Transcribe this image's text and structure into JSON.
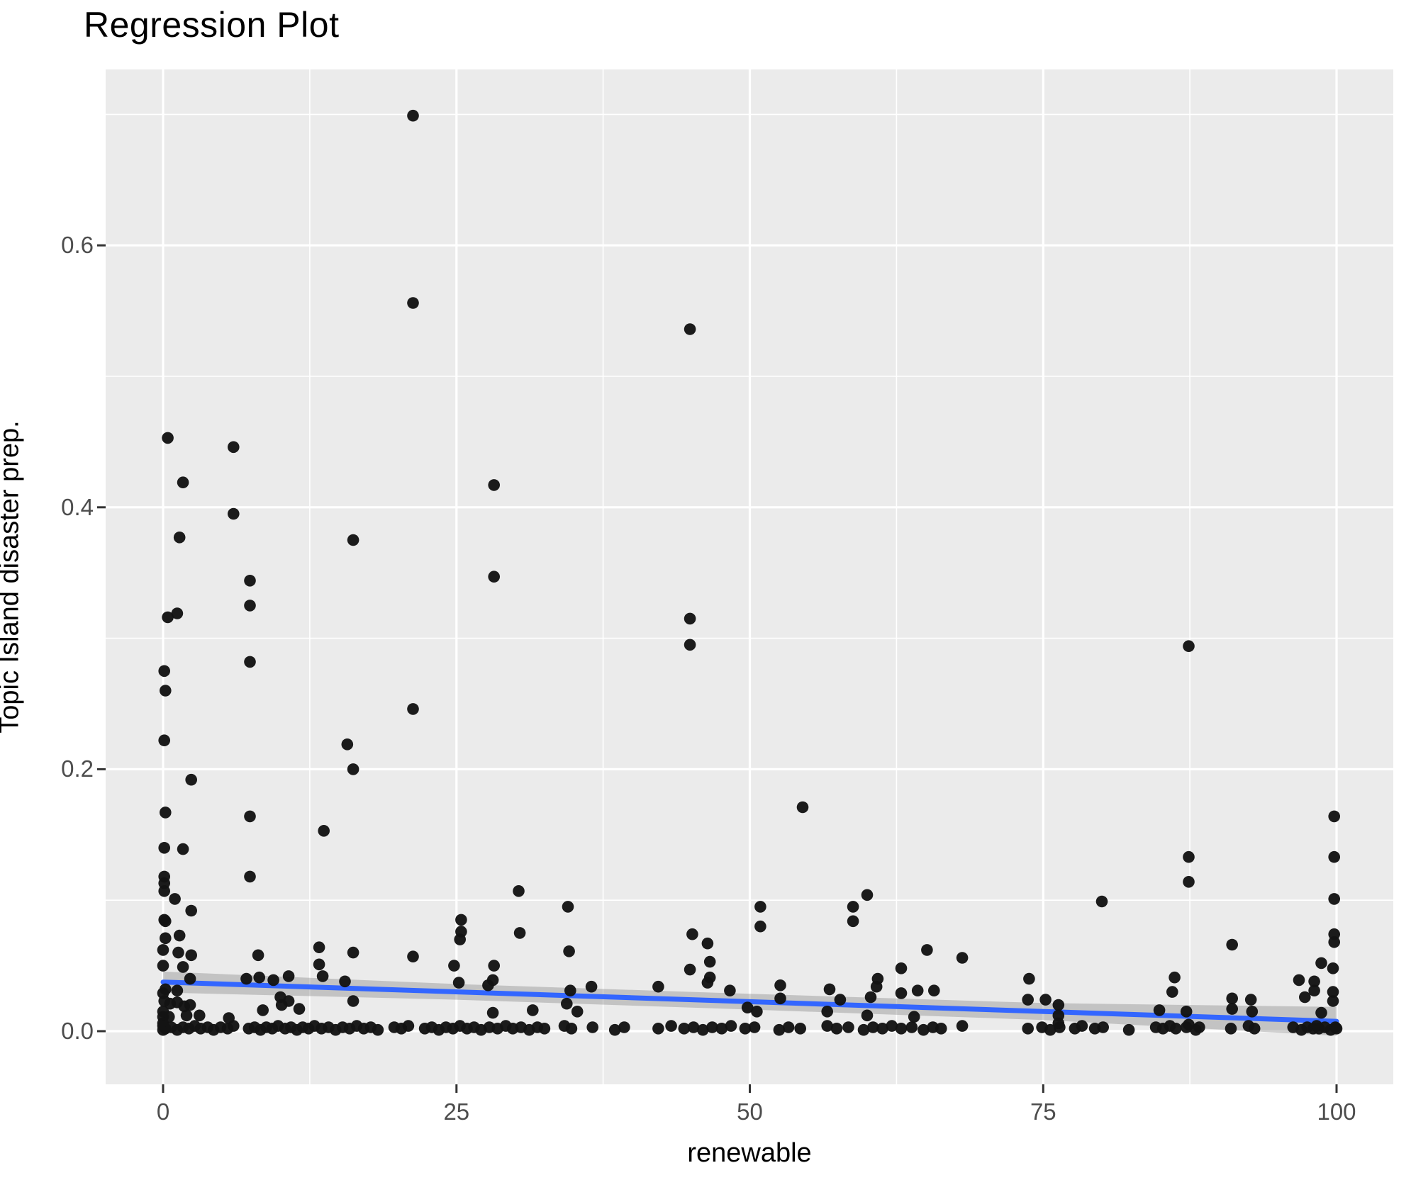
{
  "title": "Regression Plot",
  "colors": {
    "panel_background": "#EBEBEB",
    "grid": "#FFFFFF",
    "point": "#141414",
    "regression_line": "#3366FF",
    "confidence_band": "rgba(120,120,120,0.35)",
    "tick_label": "#4D4D4D",
    "tick_mark": "#333333",
    "text": "#000000"
  },
  "chart_data": {
    "type": "scatter",
    "title": "Regression Plot",
    "xlabel": "renewable",
    "ylabel": "Topic Island disaster prep.",
    "xlim": [
      -4.9,
      104.7
    ],
    "ylim": [
      -0.041,
      0.734
    ],
    "grid": "on",
    "legend": "none",
    "x_ticks": {
      "values": [
        0,
        25,
        50,
        75,
        100
      ],
      "labels": [
        "0",
        "25",
        "50",
        "75",
        "100"
      ]
    },
    "y_ticks": {
      "values": [
        0.0,
        0.2,
        0.4,
        0.6
      ],
      "labels": [
        "0.0",
        "0.2",
        "0.4",
        "0.6"
      ]
    },
    "x_minor": [
      12.5,
      37.5,
      62.5,
      87.5
    ],
    "y_minor": [
      0.1,
      0.3,
      0.5,
      0.7
    ],
    "regression_line": {
      "x1": 0,
      "y1": 0.0375,
      "x2": 100,
      "y2": 0.0075
    },
    "confidence_band": {
      "x": [
        0,
        25,
        50,
        75,
        100
      ],
      "upper": [
        0.0455,
        0.036,
        0.0285,
        0.0215,
        0.0185
      ],
      "lower": [
        0.0295,
        0.024,
        0.0165,
        0.0085,
        -0.0035
      ]
    },
    "points": [
      [
        0.4,
        0.453
      ],
      [
        1.7,
        0.419
      ],
      [
        1.4,
        0.377
      ],
      [
        1.2,
        0.319
      ],
      [
        0.4,
        0.316
      ],
      [
        0.1,
        0.275
      ],
      [
        0.2,
        0.26
      ],
      [
        0.1,
        0.222
      ],
      [
        2.4,
        0.192
      ],
      [
        0.2,
        0.167
      ],
      [
        0.1,
        0.14
      ],
      [
        1.7,
        0.139
      ],
      [
        0.1,
        0.118
      ],
      [
        0.1,
        0.113
      ],
      [
        0.1,
        0.107
      ],
      [
        1.0,
        0.101
      ],
      [
        2.4,
        0.092
      ],
      [
        0.1,
        0.085
      ],
      [
        0.2,
        0.084
      ],
      [
        1.4,
        0.073
      ],
      [
        0.2,
        0.071
      ],
      [
        0.0,
        0.062
      ],
      [
        1.3,
        0.06
      ],
      [
        2.4,
        0.058
      ],
      [
        0.0,
        0.05
      ],
      [
        1.7,
        0.049
      ],
      [
        2.3,
        0.04
      ],
      [
        0.2,
        0.032
      ],
      [
        1.2,
        0.031
      ],
      [
        0.0,
        0.029
      ],
      [
        0.1,
        0.023
      ],
      [
        0.6,
        0.021
      ],
      [
        1.2,
        0.022
      ],
      [
        1.8,
        0.019
      ],
      [
        2.3,
        0.02
      ],
      [
        0.0,
        0.015
      ],
      [
        0.0,
        0.011
      ],
      [
        0.5,
        0.011
      ],
      [
        2.0,
        0.012
      ],
      [
        3.1,
        0.012
      ],
      [
        5.6,
        0.01
      ],
      [
        0.0,
        0.006
      ],
      [
        6.0,
        0.446
      ],
      [
        6.0,
        0.395
      ],
      [
        7.4,
        0.344
      ],
      [
        7.4,
        0.325
      ],
      [
        7.4,
        0.282
      ],
      [
        16.2,
        0.375
      ],
      [
        21.3,
        0.699
      ],
      [
        21.3,
        0.556
      ],
      [
        21.3,
        0.246
      ],
      [
        15.7,
        0.219
      ],
      [
        16.2,
        0.2
      ],
      [
        7.4,
        0.164
      ],
      [
        13.7,
        0.153
      ],
      [
        7.4,
        0.118
      ],
      [
        8.1,
        0.058
      ],
      [
        13.3,
        0.064
      ],
      [
        16.2,
        0.06
      ],
      [
        21.3,
        0.057
      ],
      [
        13.3,
        0.051
      ],
      [
        24.8,
        0.05
      ],
      [
        7.1,
        0.04
      ],
      [
        8.2,
        0.041
      ],
      [
        9.4,
        0.039
      ],
      [
        10.7,
        0.042
      ],
      [
        13.6,
        0.042
      ],
      [
        15.5,
        0.038
      ],
      [
        10.0,
        0.026
      ],
      [
        10.7,
        0.023
      ],
      [
        16.2,
        0.023
      ],
      [
        10.1,
        0.02
      ],
      [
        11.6,
        0.017
      ],
      [
        8.5,
        0.016
      ],
      [
        25.2,
        0.037
      ],
      [
        25.4,
        0.085
      ],
      [
        25.4,
        0.076
      ],
      [
        25.3,
        0.07
      ],
      [
        28.2,
        0.417
      ],
      [
        28.2,
        0.347
      ],
      [
        30.3,
        0.107
      ],
      [
        34.5,
        0.095
      ],
      [
        30.4,
        0.075
      ],
      [
        34.6,
        0.061
      ],
      [
        28.2,
        0.05
      ],
      [
        28.1,
        0.039
      ],
      [
        27.7,
        0.035
      ],
      [
        34.7,
        0.031
      ],
      [
        36.5,
        0.034
      ],
      [
        34.4,
        0.021
      ],
      [
        35.3,
        0.015
      ],
      [
        31.5,
        0.016
      ],
      [
        28.1,
        0.014
      ],
      [
        42.2,
        0.034
      ],
      [
        44.9,
        0.536
      ],
      [
        44.9,
        0.315
      ],
      [
        44.9,
        0.295
      ],
      [
        45.1,
        0.074
      ],
      [
        46.4,
        0.067
      ],
      [
        46.6,
        0.053
      ],
      [
        44.9,
        0.047
      ],
      [
        46.6,
        0.041
      ],
      [
        46.4,
        0.037
      ],
      [
        48.3,
        0.031
      ],
      [
        49.8,
        0.018
      ],
      [
        50.6,
        0.015
      ],
      [
        50.9,
        0.095
      ],
      [
        50.9,
        0.08
      ],
      [
        52.6,
        0.035
      ],
      [
        52.6,
        0.025
      ],
      [
        54.5,
        0.171
      ],
      [
        56.8,
        0.032
      ],
      [
        57.7,
        0.024
      ],
      [
        56.6,
        0.015
      ],
      [
        58.8,
        0.095
      ],
      [
        58.8,
        0.084
      ],
      [
        60.0,
        0.104
      ],
      [
        60.8,
        0.034
      ],
      [
        60.3,
        0.026
      ],
      [
        60.0,
        0.012
      ],
      [
        60.9,
        0.04
      ],
      [
        62.9,
        0.048
      ],
      [
        62.9,
        0.029
      ],
      [
        64.3,
        0.031
      ],
      [
        64.0,
        0.011
      ],
      [
        65.1,
        0.062
      ],
      [
        65.7,
        0.031
      ],
      [
        68.1,
        0.056
      ],
      [
        73.8,
        0.04
      ],
      [
        73.7,
        0.024
      ],
      [
        75.2,
        0.024
      ],
      [
        76.3,
        0.02
      ],
      [
        76.3,
        0.012
      ],
      [
        76.3,
        0.006
      ],
      [
        80.0,
        0.099
      ],
      [
        84.9,
        0.016
      ],
      [
        86.0,
        0.03
      ],
      [
        86.2,
        0.041
      ],
      [
        87.4,
        0.294
      ],
      [
        87.4,
        0.133
      ],
      [
        87.4,
        0.114
      ],
      [
        87.2,
        0.015
      ],
      [
        87.4,
        0.005
      ],
      [
        91.1,
        0.066
      ],
      [
        91.1,
        0.025
      ],
      [
        91.1,
        0.017
      ],
      [
        92.7,
        0.024
      ],
      [
        92.8,
        0.015
      ],
      [
        96.8,
        0.039
      ],
      [
        97.3,
        0.026
      ],
      [
        98.1,
        0.038
      ],
      [
        98.1,
        0.031
      ],
      [
        98.7,
        0.052
      ],
      [
        98.7,
        0.014
      ],
      [
        99.7,
        0.048
      ],
      [
        99.7,
        0.03
      ],
      [
        99.7,
        0.023
      ],
      [
        99.8,
        0.164
      ],
      [
        99.8,
        0.133
      ],
      [
        99.8,
        0.101
      ],
      [
        99.8,
        0.074
      ],
      [
        99.8,
        0.068
      ],
      [
        0.0,
        0.001
      ],
      [
        0.0,
        0.004
      ],
      [
        0.2,
        0.002
      ],
      [
        0.7,
        0.003
      ],
      [
        1.2,
        0.001
      ],
      [
        1.7,
        0.003
      ],
      [
        2.2,
        0.002
      ],
      [
        2.7,
        0.004
      ],
      [
        3.2,
        0.002
      ],
      [
        3.8,
        0.003
      ],
      [
        4.3,
        0.001
      ],
      [
        4.9,
        0.003
      ],
      [
        5.5,
        0.002
      ],
      [
        6.0,
        0.004
      ],
      [
        7.3,
        0.002
      ],
      [
        7.8,
        0.003
      ],
      [
        8.3,
        0.001
      ],
      [
        8.8,
        0.003
      ],
      [
        9.3,
        0.002
      ],
      [
        9.8,
        0.004
      ],
      [
        10.4,
        0.002
      ],
      [
        10.9,
        0.003
      ],
      [
        11.4,
        0.001
      ],
      [
        11.9,
        0.003
      ],
      [
        12.4,
        0.002
      ],
      [
        12.9,
        0.004
      ],
      [
        13.5,
        0.002
      ],
      [
        14.1,
        0.003
      ],
      [
        14.7,
        0.001
      ],
      [
        15.3,
        0.003
      ],
      [
        15.9,
        0.002
      ],
      [
        16.5,
        0.004
      ],
      [
        17.1,
        0.002
      ],
      [
        17.7,
        0.003
      ],
      [
        18.3,
        0.001
      ],
      [
        19.7,
        0.003
      ],
      [
        20.3,
        0.002
      ],
      [
        20.9,
        0.004
      ],
      [
        22.3,
        0.002
      ],
      [
        22.9,
        0.003
      ],
      [
        23.5,
        0.001
      ],
      [
        24.1,
        0.003
      ],
      [
        24.7,
        0.002
      ],
      [
        25.3,
        0.004
      ],
      [
        25.9,
        0.002
      ],
      [
        26.5,
        0.003
      ],
      [
        27.1,
        0.001
      ],
      [
        27.8,
        0.003
      ],
      [
        28.5,
        0.002
      ],
      [
        29.2,
        0.004
      ],
      [
        29.8,
        0.002
      ],
      [
        30.5,
        0.003
      ],
      [
        31.2,
        0.001
      ],
      [
        31.9,
        0.003
      ],
      [
        32.5,
        0.002
      ],
      [
        34.2,
        0.004
      ],
      [
        34.8,
        0.002
      ],
      [
        36.6,
        0.003
      ],
      [
        38.5,
        0.001
      ],
      [
        39.3,
        0.003
      ],
      [
        42.2,
        0.002
      ],
      [
        43.3,
        0.004
      ],
      [
        44.4,
        0.002
      ],
      [
        45.2,
        0.003
      ],
      [
        46.0,
        0.001
      ],
      [
        46.8,
        0.003
      ],
      [
        47.6,
        0.002
      ],
      [
        48.4,
        0.004
      ],
      [
        49.6,
        0.002
      ],
      [
        50.4,
        0.003
      ],
      [
        52.5,
        0.001
      ],
      [
        53.3,
        0.003
      ],
      [
        54.3,
        0.002
      ],
      [
        56.6,
        0.004
      ],
      [
        57.4,
        0.002
      ],
      [
        58.4,
        0.003
      ],
      [
        59.7,
        0.001
      ],
      [
        60.5,
        0.003
      ],
      [
        61.3,
        0.002
      ],
      [
        62.1,
        0.004
      ],
      [
        62.9,
        0.002
      ],
      [
        63.8,
        0.003
      ],
      [
        64.8,
        0.001
      ],
      [
        65.6,
        0.003
      ],
      [
        66.3,
        0.002
      ],
      [
        68.1,
        0.004
      ],
      [
        73.7,
        0.002
      ],
      [
        74.9,
        0.003
      ],
      [
        75.6,
        0.001
      ],
      [
        76.4,
        0.003
      ],
      [
        77.7,
        0.002
      ],
      [
        78.3,
        0.004
      ],
      [
        79.4,
        0.002
      ],
      [
        80.1,
        0.003
      ],
      [
        82.3,
        0.001
      ],
      [
        84.6,
        0.003
      ],
      [
        85.2,
        0.002
      ],
      [
        85.8,
        0.004
      ],
      [
        86.3,
        0.002
      ],
      [
        87.2,
        0.003
      ],
      [
        88.0,
        0.001
      ],
      [
        88.3,
        0.003
      ],
      [
        91.0,
        0.002
      ],
      [
        92.5,
        0.004
      ],
      [
        93.0,
        0.002
      ],
      [
        96.3,
        0.003
      ],
      [
        97.0,
        0.001
      ],
      [
        97.5,
        0.003
      ],
      [
        98.0,
        0.002
      ],
      [
        98.3,
        0.004
      ],
      [
        98.5,
        0.002
      ],
      [
        99.0,
        0.003
      ],
      [
        99.5,
        0.001
      ],
      [
        99.9,
        0.003
      ],
      [
        100.0,
        0.002
      ]
    ]
  }
}
